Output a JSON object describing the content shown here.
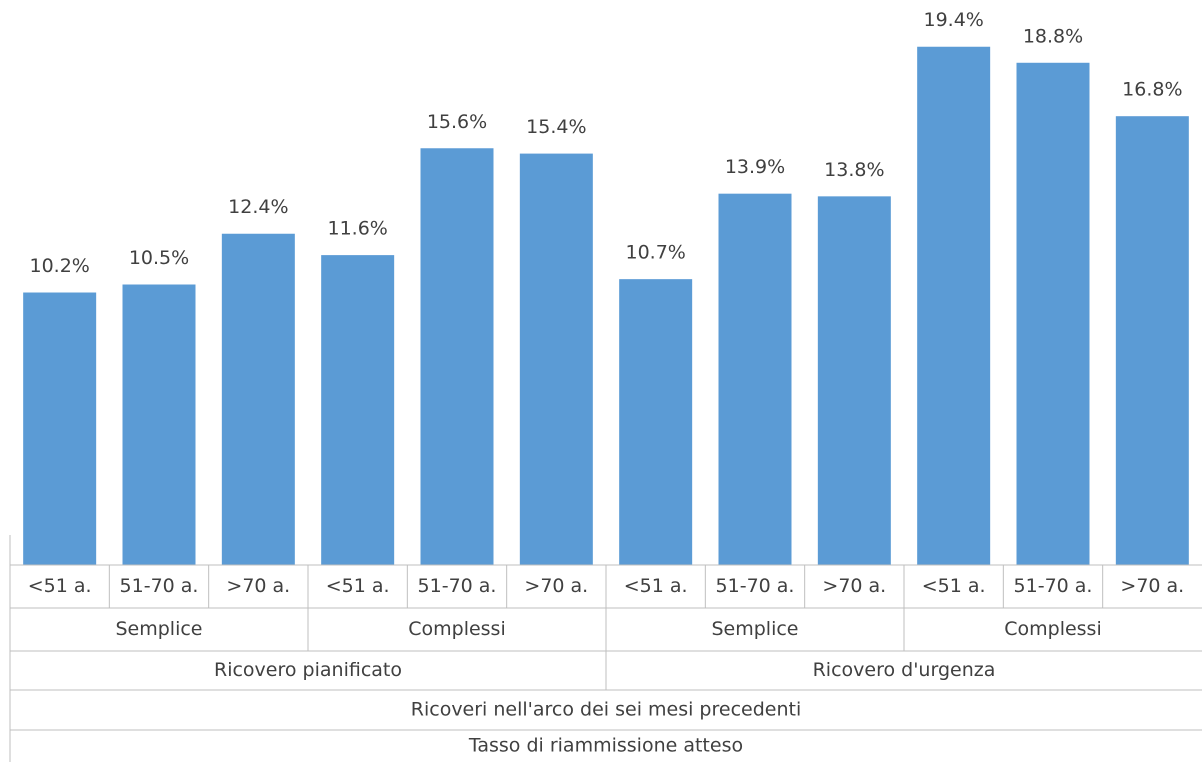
{
  "chart_data": {
    "type": "bar",
    "categories": [
      "<51 a.",
      "51-70 a.",
      ">70 a.",
      "<51 a.",
      "51-70 a.",
      ">70 a.",
      "<51 a.",
      "51-70 a.",
      ">70 a.",
      "<51 a.",
      "51-70 a.",
      ">70 a."
    ],
    "values": [
      10.2,
      10.5,
      12.4,
      11.6,
      15.6,
      15.4,
      10.7,
      13.9,
      13.8,
      19.4,
      18.8,
      16.8
    ],
    "value_labels": [
      "10.2%",
      "10.5%",
      "12.4%",
      "11.6%",
      "15.6%",
      "15.4%",
      "10.7%",
      "13.9%",
      "13.8%",
      "19.4%",
      "18.8%",
      "16.8%"
    ],
    "category_levels": [
      [
        "Semplice",
        "Complessi",
        "Semplice",
        "Complessi"
      ],
      [
        "Ricovero pianificato",
        "Ricovero d'urgenza"
      ],
      [
        "Ricoveri nell'arco dei sei mesi precedenti"
      ],
      [
        "Tasso di riammissione atteso"
      ]
    ],
    "color": "#5b9bd5",
    "ylim": [
      0,
      21
    ]
  }
}
